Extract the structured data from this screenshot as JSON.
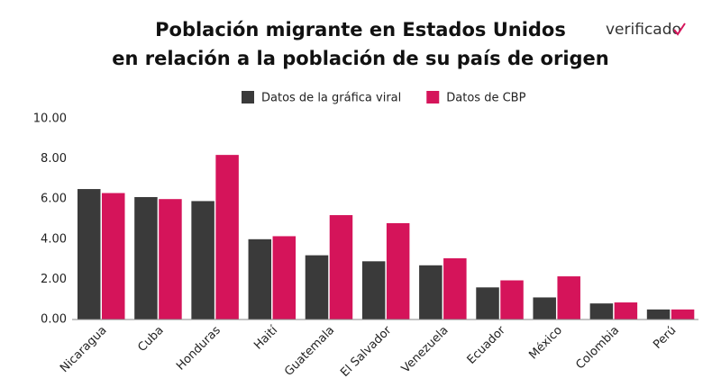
{
  "chart_data": {
    "type": "bar",
    "title": [
      "Población migrante en Estados Unidos",
      "en relación a la población de su país de origen"
    ],
    "logo": "verificado",
    "categories": [
      "Nicaragua",
      "Cuba",
      "Honduras",
      "Haití",
      "Guatemala",
      "El Salvador",
      "Venezuela",
      "Ecuador",
      "México",
      "Colombia",
      "Perú"
    ],
    "series": [
      {
        "name": "Datos de la gráfica viral",
        "color": "#3a3a3a",
        "values": [
          6.5,
          6.1,
          5.9,
          4.0,
          3.2,
          2.9,
          2.7,
          1.6,
          1.1,
          0.8,
          0.5
        ]
      },
      {
        "name": "Datos de CBP",
        "color": "#d5145a",
        "values": [
          6.3,
          6.0,
          8.2,
          4.15,
          5.2,
          4.8,
          3.05,
          1.95,
          2.15,
          0.85,
          0.5
        ]
      }
    ],
    "ylim": [
      0,
      10
    ],
    "yticks": [
      {
        "value": 0,
        "label": "0.00"
      },
      {
        "value": 2,
        "label": "2.00"
      },
      {
        "value": 4,
        "label": "4.00"
      },
      {
        "value": 6,
        "label": "6.00"
      },
      {
        "value": 8,
        "label": "8.00"
      },
      {
        "value": 10,
        "label": "10.00"
      }
    ],
    "grid": false,
    "legend": "top"
  }
}
